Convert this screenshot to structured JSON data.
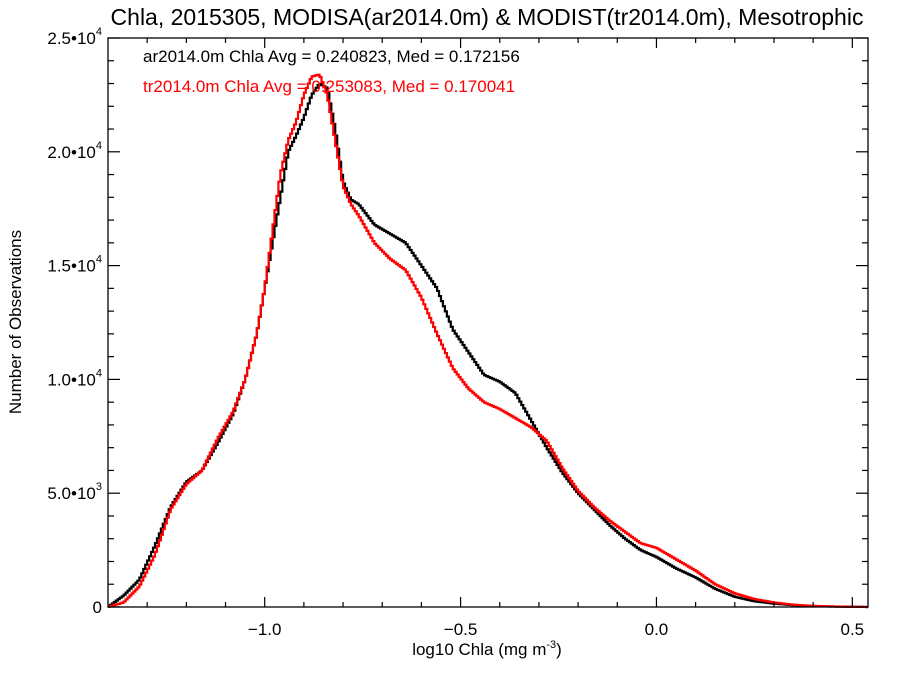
{
  "chart_data": {
    "type": "line",
    "title": "Chla, 2015305, MODISA(ar2014.0m) & MODIST(tr2014.0m), Mesotrophic",
    "xlabel": "log10 Chla (mg m",
    "xlabel_exp": "-3",
    "xlabel_close": ")",
    "ylabel": "Number of Observations",
    "xlim": [
      -1.4,
      0.54
    ],
    "ylim": [
      0,
      25000
    ],
    "x_ticks": [
      {
        "value": -1.0,
        "label": "−1.0"
      },
      {
        "value": -0.5,
        "label": "−0.5"
      },
      {
        "value": 0.0,
        "label": "0.0"
      },
      {
        "value": 0.5,
        "label": "0.5"
      }
    ],
    "y_ticks": [
      {
        "value": 0,
        "mant": "0",
        "exp": ""
      },
      {
        "value": 5000,
        "mant": "5.0•10",
        "exp": "3"
      },
      {
        "value": 10000,
        "mant": "1.0•10",
        "exp": "4"
      },
      {
        "value": 15000,
        "mant": "1.5•10",
        "exp": "4"
      },
      {
        "value": 20000,
        "mant": "2.0•10",
        "exp": "4"
      },
      {
        "value": 25000,
        "mant": "2.5•10",
        "exp": "4"
      }
    ],
    "series": [
      {
        "name": "ar2014.0m",
        "color": "#000000",
        "legend": "ar2014.0m Chla Avg = 0.240823, Med = 0.172156",
        "x": [
          -1.4,
          -1.36,
          -1.32,
          -1.28,
          -1.24,
          -1.2,
          -1.16,
          -1.12,
          -1.08,
          -1.05,
          -1.02,
          -1.0,
          -0.98,
          -0.96,
          -0.94,
          -0.92,
          -0.9,
          -0.88,
          -0.86,
          -0.84,
          -0.82,
          -0.8,
          -0.78,
          -0.76,
          -0.72,
          -0.68,
          -0.64,
          -0.6,
          -0.56,
          -0.52,
          -0.48,
          -0.44,
          -0.4,
          -0.36,
          -0.32,
          -0.28,
          -0.24,
          -0.2,
          -0.16,
          -0.12,
          -0.08,
          -0.04,
          0.0,
          0.05,
          0.1,
          0.15,
          0.2,
          0.25,
          0.3,
          0.35,
          0.4,
          0.45,
          0.5,
          0.54
        ],
        "y": [
          0,
          500,
          1200,
          2700,
          4400,
          5500,
          6000,
          7200,
          8500,
          10000,
          12000,
          14000,
          16000,
          18000,
          20000,
          20700,
          21500,
          22500,
          23000,
          22800,
          21000,
          18700,
          17900,
          17700,
          16800,
          16400,
          16000,
          15000,
          14000,
          12200,
          11200,
          10200,
          9900,
          9400,
          8200,
          7000,
          5900,
          5000,
          4300,
          3600,
          3000,
          2500,
          2200,
          1700,
          1300,
          800,
          450,
          250,
          150,
          80,
          40,
          20,
          10,
          0
        ]
      },
      {
        "name": "tr2014.0m",
        "color": "#ff0000",
        "legend": "tr2014.0m Chla Avg = 0.253083, Med = 0.170041",
        "x": [
          -1.4,
          -1.36,
          -1.32,
          -1.28,
          -1.24,
          -1.2,
          -1.16,
          -1.12,
          -1.08,
          -1.05,
          -1.02,
          -1.0,
          -0.98,
          -0.96,
          -0.94,
          -0.92,
          -0.9,
          -0.88,
          -0.86,
          -0.84,
          -0.82,
          -0.8,
          -0.78,
          -0.76,
          -0.72,
          -0.68,
          -0.64,
          -0.6,
          -0.56,
          -0.52,
          -0.48,
          -0.44,
          -0.4,
          -0.36,
          -0.32,
          -0.28,
          -0.24,
          -0.2,
          -0.16,
          -0.12,
          -0.08,
          -0.04,
          0.0,
          0.05,
          0.1,
          0.15,
          0.2,
          0.25,
          0.3,
          0.35,
          0.4,
          0.45,
          0.5,
          0.54
        ],
        "y": [
          0,
          200,
          900,
          2300,
          4300,
          5400,
          6000,
          7400,
          8600,
          10000,
          12000,
          14000,
          16500,
          19000,
          20500,
          21300,
          22500,
          23300,
          23400,
          22500,
          20500,
          18500,
          17700,
          17200,
          16000,
          15300,
          14800,
          13600,
          12000,
          10500,
          9600,
          9000,
          8700,
          8300,
          7900,
          7300,
          6100,
          5100,
          4400,
          3800,
          3300,
          2800,
          2600,
          2100,
          1600,
          1000,
          600,
          350,
          200,
          100,
          50,
          25,
          10,
          0
        ]
      }
    ]
  }
}
